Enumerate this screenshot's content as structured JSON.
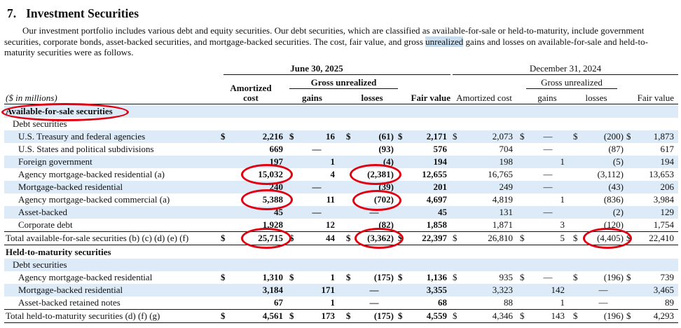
{
  "section": {
    "number": "7.",
    "title": "Investment Securities",
    "intro_before": "Our investment portfolio includes various debt and equity securities. Our debt securities, which are classified as available-for-sale or held-to-maturity, include government securities, corporate bonds, asset-backed securities, and mortgage-backed securities. The cost, fair value, and gross ",
    "intro_highlight": "unrealized",
    "intro_after": " gains and losses on available-for-sale and held-to-maturity securities were as follows."
  },
  "table": {
    "units_label": "($ in millions)",
    "period1": "June 30, 2025",
    "period2": "December 31, 2024",
    "gross_unrealized": "Gross unrealized",
    "col_amortized_cost_l1": "Amortized",
    "col_amortized_cost_l2": "cost",
    "col_gains": "gains",
    "col_losses": "losses",
    "col_fair_value": "Fair value",
    "col_amortized_cost": "Amortized cost",
    "afs_header": "Available-for-sale securities",
    "afs_sub": "Debt securities",
    "afs_rows": [
      {
        "label": "U.S. Treasury and federal agencies",
        "d": "$",
        "c1": "2,216",
        "g1": "16",
        "l1": "(61)",
        "f1": "2,171",
        "c2": "2,073",
        "g2": "—",
        "l2": "(200)",
        "f2": "1,873"
      },
      {
        "label": "U.S. States and political subdivisions",
        "d": "",
        "c1": "669",
        "g1": "—",
        "l1": "(93)",
        "f1": "576",
        "c2": "704",
        "g2": "—",
        "l2": "(87)",
        "f2": "617"
      },
      {
        "label": "Foreign government",
        "d": "",
        "c1": "197",
        "g1": "1",
        "l1": "(4)",
        "f1": "194",
        "c2": "198",
        "g2": "1",
        "l2": "(5)",
        "f2": "194"
      },
      {
        "label": "Agency mortgage-backed residential (a)",
        "d": "",
        "c1": "15,032",
        "g1": "4",
        "l1": "(2,381)",
        "f1": "12,655",
        "c2": "16,765",
        "g2": "—",
        "l2": "(3,112)",
        "f2": "13,653"
      },
      {
        "label": "Mortgage-backed residential",
        "d": "",
        "c1": "240",
        "g1": "—",
        "l1": "(39)",
        "f1": "201",
        "c2": "249",
        "g2": "—",
        "l2": "(43)",
        "f2": "206"
      },
      {
        "label": "Agency mortgage-backed commercial (a)",
        "d": "",
        "c1": "5,388",
        "g1": "11",
        "l1": "(702)",
        "f1": "4,697",
        "c2": "4,819",
        "g2": "1",
        "l2": "(836)",
        "f2": "3,984"
      },
      {
        "label": "Asset-backed",
        "d": "",
        "c1": "45",
        "g1": "—",
        "l1": "—",
        "f1": "45",
        "c2": "131",
        "g2": "—",
        "l2": "(2)",
        "f2": "129"
      },
      {
        "label": "Corporate debt",
        "d": "",
        "c1": "1,928",
        "g1": "12",
        "l1": "(82)",
        "f1": "1,858",
        "c2": "1,871",
        "g2": "3",
        "l2": "(120)",
        "f2": "1,754"
      }
    ],
    "afs_total": {
      "label": "Total available-for-sale securities (b) (c) (d) (e) (f)",
      "d": "$",
      "c1": "25,715",
      "g1": "44",
      "l1": "(3,362)",
      "f1": "22,397",
      "c2": "26,810",
      "g2": "5",
      "l2": "(4,405)",
      "f2": "22,410"
    },
    "htm_header": "Held-to-maturity securities",
    "htm_sub": "Debt securities",
    "htm_rows": [
      {
        "label": "Agency mortgage-backed residential",
        "d": "$",
        "c1": "1,310",
        "g1": "1",
        "l1": "(175)",
        "f1": "1,136",
        "c2": "935",
        "g2": "—",
        "l2": "(196)",
        "f2": "739"
      },
      {
        "label": "Mortgage-backed residential",
        "d": "",
        "c1": "3,184",
        "g1": "171",
        "l1": "—",
        "f1": "3,355",
        "c2": "3,323",
        "g2": "142",
        "l2": "—",
        "f2": "3,465"
      },
      {
        "label": "Asset-backed retained notes",
        "d": "",
        "c1": "67",
        "g1": "1",
        "l1": "—",
        "f1": "68",
        "c2": "88",
        "g2": "1",
        "l2": "—",
        "f2": "89"
      }
    ],
    "htm_total": {
      "label": "Total held-to-maturity securities (d) (f) (g)",
      "d": "$",
      "c1": "4,561",
      "g1": "173",
      "l1": "(175)",
      "f1": "4,559",
      "c2": "4,346",
      "g2": "143",
      "l2": "(196)",
      "f2": "4,293"
    }
  },
  "annotation_color": "#e00010"
}
